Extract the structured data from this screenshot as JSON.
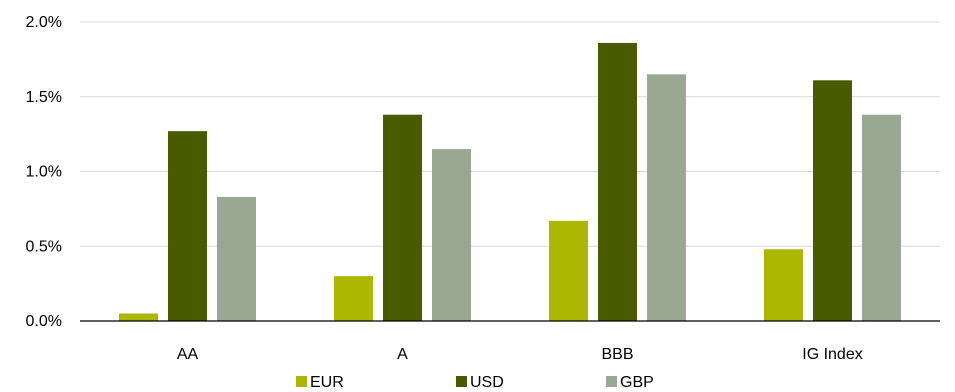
{
  "chart_data": {
    "type": "bar",
    "title": "",
    "xlabel": "",
    "ylabel": "",
    "categories": [
      "AA",
      "A",
      "BBB",
      "IG Index"
    ],
    "series": [
      {
        "name": "EUR",
        "color": "#abb700",
        "values": [
          0.05,
          0.3,
          0.67,
          0.48
        ]
      },
      {
        "name": "USD",
        "color": "#4a5a00",
        "values": [
          1.27,
          1.38,
          1.86,
          1.61
        ]
      },
      {
        "name": "GBP",
        "color": "#98a892",
        "values": [
          0.83,
          1.15,
          1.65,
          1.38
        ]
      }
    ],
    "ylim": [
      0,
      2.0
    ],
    "yticks": [
      0,
      0.5,
      1.0,
      1.5,
      2.0
    ],
    "ytick_labels": [
      "0.0%",
      "0.5%",
      "1.0%",
      "1.5%",
      "2.0%"
    ],
    "grid": true,
    "legend": "bottom"
  }
}
